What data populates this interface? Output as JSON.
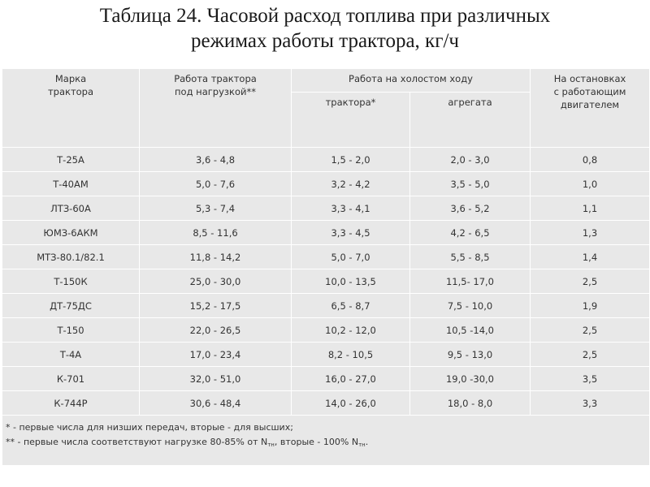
{
  "title": {
    "line1": "Таблица 24.  Часовой расход топлива при различных",
    "line2": "режимах работы трактора, кг/ч"
  },
  "headers": {
    "brand": [
      "Марка",
      "трактора"
    ],
    "load": [
      "Работа трактора",
      "под нагрузкой**"
    ],
    "idle": "Работа на  холостом  ходу",
    "idle_tractor": "трактора*",
    "idle_unit": "агрегата",
    "stops": [
      "На остановках",
      "с работающим",
      "двигателем"
    ]
  },
  "rows": [
    {
      "brand": "Т-25А",
      "load": "3,6 - 4,8",
      "idle_tractor": "1,5 - 2,0",
      "idle_unit": "2,0 - 3,0",
      "stops": "0,8"
    },
    {
      "brand": "Т-40АМ",
      "load": "5,0 - 7,6",
      "idle_tractor": "3,2 - 4,2",
      "idle_unit": "3,5 - 5,0",
      "stops": "1,0"
    },
    {
      "brand": "ЛТЗ-60А",
      "load": "5,3 - 7,4",
      "idle_tractor": "3,3 - 4,1",
      "idle_unit": "3,6 - 5,2",
      "stops": "1,1"
    },
    {
      "brand": "ЮМЗ-6АКМ",
      "load": "8,5 - 11,6",
      "idle_tractor": "3,3 - 4,5",
      "idle_unit": "4,2 - 6,5",
      "stops": "1,3"
    },
    {
      "brand": "МТЗ-80.1/82.1",
      "load": "11,8 - 14,2",
      "idle_tractor": "5,0 - 7,0",
      "idle_unit": "5,5 - 8,5",
      "stops": "1,4"
    },
    {
      "brand": "Т-150К",
      "load": "25,0 - 30,0",
      "idle_tractor": "10,0 - 13,5",
      "idle_unit": "11,5- 17,0",
      "stops": "2,5"
    },
    {
      "brand": "ДТ-75ДС",
      "load": "15,2 - 17,5",
      "idle_tractor": "6,5 - 8,7",
      "idle_unit": "7,5 - 10,0",
      "stops": "1,9"
    },
    {
      "brand": "Т-150",
      "load": "22,0 - 26,5",
      "idle_tractor": "10,2 - 12,0",
      "idle_unit": "10,5 -14,0",
      "stops": "2,5"
    },
    {
      "brand": "Т-4А",
      "load": "17,0 - 23,4",
      "idle_tractor": "8,2 - 10,5",
      "idle_unit": "9,5 - 13,0",
      "stops": "2,5"
    },
    {
      "brand": "К-701",
      "load": "32,0 - 51,0",
      "idle_tractor": "16,0 - 27,0",
      "idle_unit": "19,0 -30,0",
      "stops": "3,5"
    },
    {
      "brand": "К-744Р",
      "load": "30,6 - 48,4",
      "idle_tractor": "14,0 - 26,0",
      "idle_unit": "18,0 - 8,0",
      "stops": "3,3"
    }
  ],
  "footnotes": {
    "note1": "* - первые числа для низших передач, вторые - для высших;",
    "note2_a": "** - первые числа соответствуют нагрузке 80-85% от N",
    "note2_sub1": "тн",
    "note2_b": ", вторые - 100% N",
    "note2_sub2": "тн",
    "note2_c": "."
  }
}
